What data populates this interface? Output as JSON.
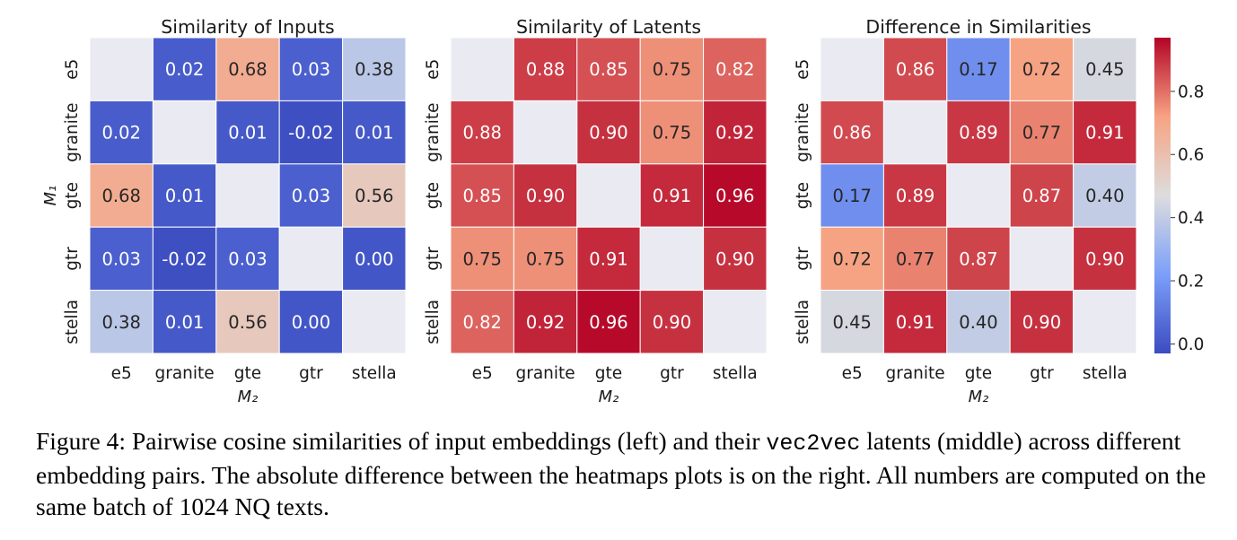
{
  "chart_data": [
    {
      "type": "heatmap",
      "title": "Similarity of Inputs",
      "xlabel": "M₂",
      "ylabel": "M₁",
      "x_categories": [
        "e5",
        "granite",
        "gte",
        "gtr",
        "stella"
      ],
      "y_categories": [
        "e5",
        "granite",
        "gte",
        "gtr",
        "stella"
      ],
      "values": [
        [
          null,
          0.02,
          0.68,
          0.03,
          0.38
        ],
        [
          0.02,
          null,
          0.01,
          -0.02,
          0.01
        ],
        [
          0.68,
          0.01,
          null,
          0.03,
          0.56
        ],
        [
          0.03,
          -0.02,
          0.03,
          null,
          0.0
        ],
        [
          0.38,
          0.01,
          0.56,
          0.0,
          null
        ]
      ]
    },
    {
      "type": "heatmap",
      "title": "Similarity of Latents",
      "xlabel": "M₂",
      "ylabel": "",
      "x_categories": [
        "e5",
        "granite",
        "gte",
        "gtr",
        "stella"
      ],
      "y_categories": [
        "e5",
        "granite",
        "gte",
        "gtr",
        "stella"
      ],
      "values": [
        [
          null,
          0.88,
          0.85,
          0.75,
          0.82
        ],
        [
          0.88,
          null,
          0.9,
          0.75,
          0.92
        ],
        [
          0.85,
          0.9,
          null,
          0.91,
          0.96
        ],
        [
          0.75,
          0.75,
          0.91,
          null,
          0.9
        ],
        [
          0.82,
          0.92,
          0.96,
          0.9,
          null
        ]
      ]
    },
    {
      "type": "heatmap",
      "title": "Difference in Similarities",
      "xlabel": "M₂",
      "ylabel": "",
      "x_categories": [
        "e5",
        "granite",
        "gte",
        "gtr",
        "stella"
      ],
      "y_categories": [
        "e5",
        "granite",
        "gte",
        "gtr",
        "stella"
      ],
      "values": [
        [
          null,
          0.86,
          0.17,
          0.72,
          0.45
        ],
        [
          0.86,
          null,
          0.89,
          0.77,
          0.91
        ],
        [
          0.17,
          0.89,
          null,
          0.87,
          0.4
        ],
        [
          0.72,
          0.77,
          0.87,
          null,
          0.9
        ],
        [
          0.45,
          0.91,
          0.4,
          0.9,
          null
        ]
      ]
    }
  ],
  "colorbar": {
    "colormap": "coolwarm",
    "range": [
      -0.03,
      0.97
    ],
    "ticks": [
      "0.0",
      "0.2",
      "0.4",
      "0.6",
      "0.8"
    ],
    "tick_values": [
      0.0,
      0.2,
      0.4,
      0.6,
      0.8
    ]
  },
  "caption": {
    "lead": "Figure 4: Pairwise cosine similarities of input embeddings (left) and their ",
    "code": "vec2vec",
    "rest": " latents (middle) across different embedding pairs. The absolute difference between the heatmaps plots is on the right. All numbers are computed on the same batch of 1024 NQ texts."
  },
  "colors": {
    "diagonal": "#eaeaf2",
    "cell_border": "#ffffff"
  }
}
